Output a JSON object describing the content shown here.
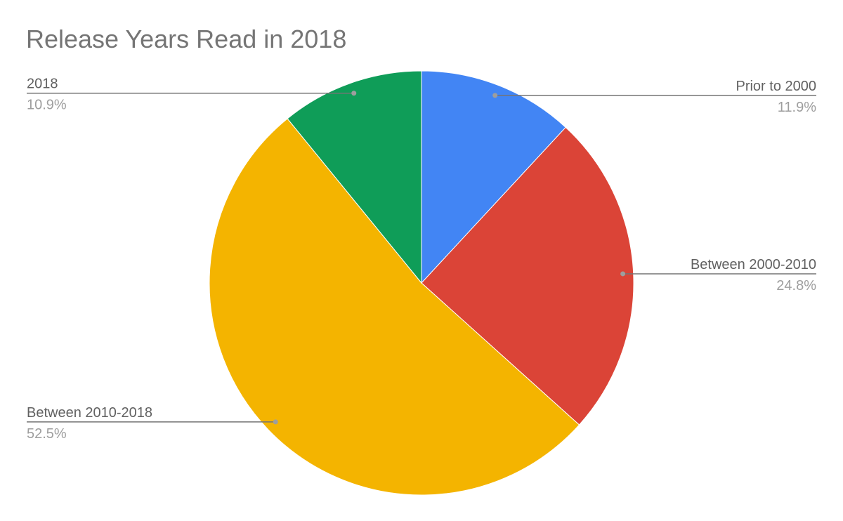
{
  "chart_data": {
    "type": "pie",
    "title": "Release Years Read in 2018",
    "categories": [
      "Prior to 2000",
      "Between 2000-2010",
      "Between 2010-2018",
      "2018"
    ],
    "values": [
      11.9,
      24.8,
      52.5,
      10.9
    ],
    "value_labels": [
      "11.9%",
      "24.8%",
      "52.5%",
      "10.9%"
    ],
    "colors": [
      "#4285f4",
      "#db4437",
      "#f4b400",
      "#0f9d58"
    ]
  }
}
